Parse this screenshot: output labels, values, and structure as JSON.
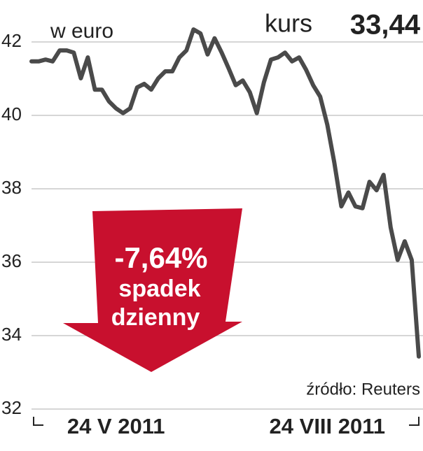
{
  "chart_data": {
    "type": "line",
    "subtitle": "w euro",
    "annotations": {
      "kurs_label": "kurs",
      "kurs_value": "33,44",
      "change": "-7,64%",
      "change_line1": "spadek",
      "change_line2": "dzienny",
      "source": "źródło: Reuters"
    },
    "categories": [
      null,
      null,
      null,
      null,
      null,
      null,
      null,
      null,
      null,
      null,
      null,
      null,
      "24 V 2011",
      null,
      null,
      null,
      null,
      null,
      null,
      null,
      null,
      null,
      null,
      null,
      null,
      null,
      null,
      null,
      null,
      null,
      null,
      null,
      null,
      null,
      null,
      null,
      null,
      null,
      null,
      null,
      null,
      null,
      "24 VIII 2011",
      null,
      null,
      null,
      null,
      null,
      null,
      null,
      null,
      null,
      null,
      null,
      null,
      null
    ],
    "series": [
      {
        "name": "kurs",
        "color": "#4a4a4a",
        "values": [
          41.47,
          41.47,
          41.52,
          41.47,
          41.77,
          41.77,
          41.71,
          41.01,
          41.58,
          40.7,
          40.7,
          40.38,
          40.19,
          40.06,
          40.19,
          40.76,
          40.86,
          40.7,
          41.01,
          41.2,
          41.2,
          41.58,
          41.77,
          42.34,
          42.23,
          41.66,
          42.1,
          41.71,
          41.28,
          40.82,
          40.95,
          40.63,
          40.06,
          40.9,
          41.52,
          41.58,
          41.71,
          41.47,
          41.58,
          41.24,
          40.82,
          40.51,
          39.75,
          38.72,
          37.52,
          37.9,
          37.52,
          37.47,
          38.19,
          37.96,
          38.38,
          36.95,
          36.06,
          36.57,
          36.06,
          33.43
        ]
      }
    ],
    "ylim": [
      32,
      42
    ],
    "yticks": [
      32,
      34,
      36,
      38,
      40,
      42
    ],
    "grid": true,
    "arrow_color": "#c8102e"
  }
}
